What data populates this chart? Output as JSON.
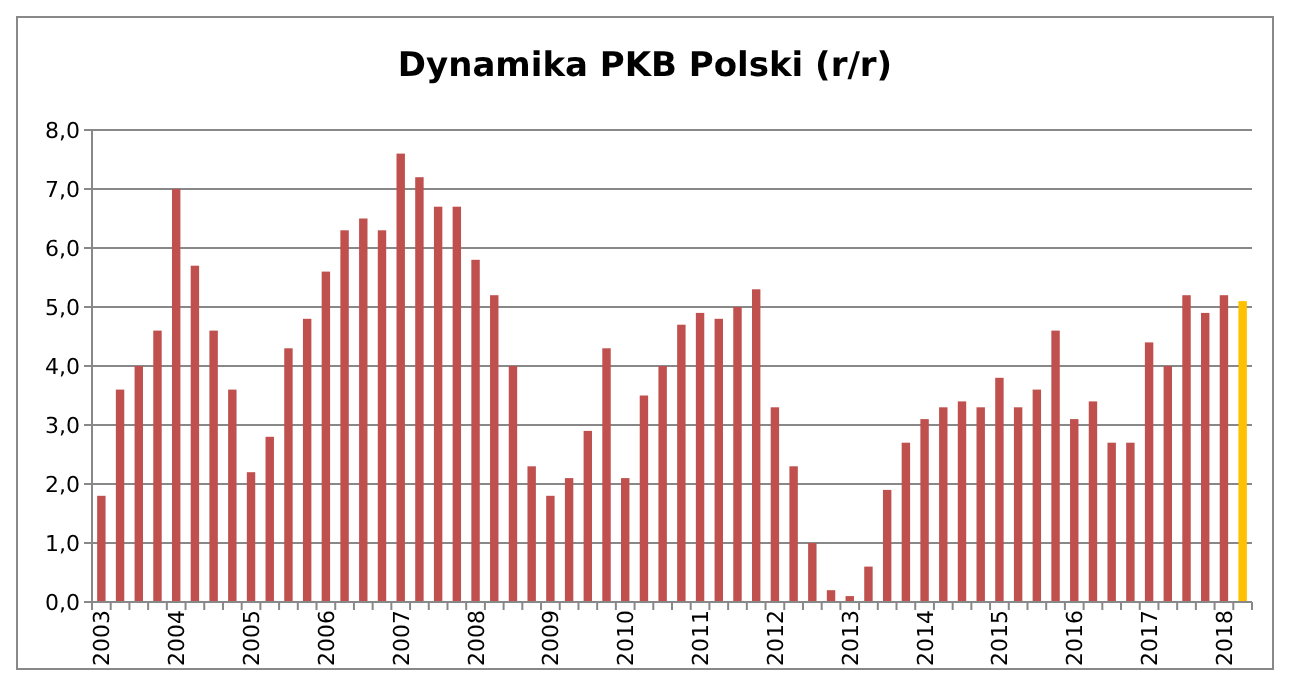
{
  "chart_data": {
    "type": "bar",
    "title": "Dynamika PKB Polski (r/r)",
    "categories": [
      "2003",
      null,
      null,
      null,
      "2004",
      null,
      null,
      null,
      "2005",
      null,
      null,
      null,
      "2006",
      null,
      null,
      null,
      "2007",
      null,
      null,
      null,
      "2008",
      null,
      null,
      null,
      "2009",
      null,
      null,
      null,
      "2010",
      null,
      null,
      null,
      "2011",
      null,
      null,
      null,
      "2012",
      null,
      null,
      null,
      "2013",
      null,
      null,
      null,
      "2014",
      null,
      null,
      null,
      "2015",
      null,
      null,
      null,
      "2016",
      null,
      null,
      null,
      "2017",
      null,
      null,
      null,
      "2018",
      null
    ],
    "values": [
      1.8,
      3.6,
      4.0,
      4.6,
      7.0,
      5.7,
      4.6,
      3.6,
      2.2,
      2.8,
      4.3,
      4.8,
      5.6,
      6.3,
      6.5,
      6.3,
      7.6,
      7.2,
      6.7,
      6.7,
      5.8,
      5.2,
      4.0,
      2.3,
      1.8,
      2.1,
      2.9,
      4.3,
      2.1,
      3.5,
      4.0,
      4.7,
      4.9,
      4.8,
      5.0,
      5.3,
      3.3,
      2.3,
      1.0,
      0.2,
      0.1,
      0.6,
      1.9,
      2.7,
      3.1,
      3.3,
      3.4,
      3.3,
      3.8,
      3.3,
      3.6,
      4.6,
      3.1,
      3.4,
      2.7,
      2.7,
      4.4,
      4.0,
      5.2,
      4.9,
      5.2,
      5.1
    ],
    "colors": [
      "#c0504d",
      "#c0504d",
      "#c0504d",
      "#c0504d",
      "#c0504d",
      "#c0504d",
      "#c0504d",
      "#c0504d",
      "#c0504d",
      "#c0504d",
      "#c0504d",
      "#c0504d",
      "#c0504d",
      "#c0504d",
      "#c0504d",
      "#c0504d",
      "#c0504d",
      "#c0504d",
      "#c0504d",
      "#c0504d",
      "#c0504d",
      "#c0504d",
      "#c0504d",
      "#c0504d",
      "#c0504d",
      "#c0504d",
      "#c0504d",
      "#c0504d",
      "#c0504d",
      "#c0504d",
      "#c0504d",
      "#c0504d",
      "#c0504d",
      "#c0504d",
      "#c0504d",
      "#c0504d",
      "#c0504d",
      "#c0504d",
      "#c0504d",
      "#c0504d",
      "#c0504d",
      "#c0504d",
      "#c0504d",
      "#c0504d",
      "#c0504d",
      "#c0504d",
      "#c0504d",
      "#c0504d",
      "#c0504d",
      "#c0504d",
      "#c0504d",
      "#c0504d",
      "#c0504d",
      "#c0504d",
      "#c0504d",
      "#c0504d",
      "#c0504d",
      "#c0504d",
      "#c0504d",
      "#c0504d",
      "#c0504d",
      "#ffc000"
    ],
    "ylim": [
      0,
      8
    ],
    "yticks": [
      {
        "value": 0,
        "label": "0,0"
      },
      {
        "value": 1,
        "label": "1,0"
      },
      {
        "value": 2,
        "label": "2,0"
      },
      {
        "value": 3,
        "label": "3,0"
      },
      {
        "value": 4,
        "label": "4,0"
      },
      {
        "value": 5,
        "label": "5,0"
      },
      {
        "value": 6,
        "label": "6,0"
      },
      {
        "value": 7,
        "label": "7,0"
      },
      {
        "value": 8,
        "label": "8,0"
      }
    ],
    "grid": "y"
  }
}
